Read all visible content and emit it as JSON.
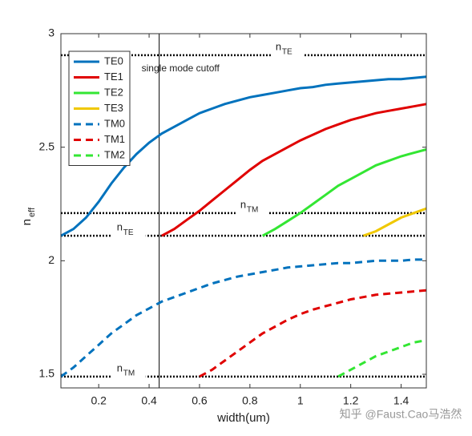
{
  "chart_data": {
    "type": "line",
    "xlabel": "width(um)",
    "ylabel": "n",
    "ylabel_sub": "eff",
    "xlim": [
      0.05,
      1.5
    ],
    "xticks": [
      0.2,
      0.4,
      0.6,
      0.8,
      1,
      1.2,
      1.4
    ],
    "ylim": [
      1.44,
      3
    ],
    "yticks": [
      1.5,
      2,
      2.5,
      3
    ],
    "grid": false,
    "legend": "upper left",
    "x": [
      0.05,
      0.1,
      0.15,
      0.2,
      0.25,
      0.3,
      0.35,
      0.4,
      0.45,
      0.5,
      0.55,
      0.6,
      0.65,
      0.7,
      0.75,
      0.8,
      0.85,
      0.9,
      0.95,
      1.0,
      1.05,
      1.1,
      1.15,
      1.2,
      1.25,
      1.3,
      1.35,
      1.4,
      1.45,
      1.5
    ],
    "series": [
      {
        "name": "TE0",
        "color": "#0072bd",
        "dashed": false,
        "values": [
          2.11,
          2.14,
          2.19,
          2.26,
          2.34,
          2.41,
          2.47,
          2.52,
          2.56,
          2.59,
          2.62,
          2.65,
          2.67,
          2.69,
          2.705,
          2.72,
          2.73,
          2.74,
          2.75,
          2.76,
          2.765,
          2.775,
          2.78,
          2.785,
          2.79,
          2.795,
          2.8,
          2.8,
          2.805,
          2.81
        ]
      },
      {
        "name": "TE1",
        "color": "#e00000",
        "dashed": false,
        "values": [
          null,
          null,
          null,
          null,
          null,
          null,
          null,
          null,
          2.11,
          2.14,
          2.18,
          2.22,
          2.265,
          2.31,
          2.355,
          2.4,
          2.44,
          2.47,
          2.5,
          2.53,
          2.555,
          2.58,
          2.6,
          2.62,
          2.635,
          2.65,
          2.66,
          2.67,
          2.68,
          2.69
        ]
      },
      {
        "name": "TE2",
        "color": "#33e633",
        "dashed": false,
        "values": [
          null,
          null,
          null,
          null,
          null,
          null,
          null,
          null,
          null,
          null,
          null,
          null,
          null,
          null,
          null,
          null,
          2.11,
          2.14,
          2.175,
          2.21,
          2.25,
          2.29,
          2.33,
          2.36,
          2.39,
          2.42,
          2.44,
          2.46,
          2.475,
          2.49
        ]
      },
      {
        "name": "TE3",
        "color": "#f0c800",
        "dashed": false,
        "values": [
          null,
          null,
          null,
          null,
          null,
          null,
          null,
          null,
          null,
          null,
          null,
          null,
          null,
          null,
          null,
          null,
          null,
          null,
          null,
          null,
          null,
          null,
          null,
          null,
          2.11,
          2.13,
          2.16,
          2.19,
          2.21,
          2.23
        ]
      },
      {
        "name": "TM0",
        "color": "#0072bd",
        "dashed": true,
        "values": [
          1.49,
          1.53,
          1.58,
          1.63,
          1.68,
          1.72,
          1.76,
          1.79,
          1.82,
          1.84,
          1.86,
          1.88,
          1.9,
          1.915,
          1.93,
          1.94,
          1.95,
          1.96,
          1.97,
          1.975,
          1.98,
          1.985,
          1.99,
          1.99,
          1.995,
          2.0,
          2.0,
          2.0,
          2.005,
          2.005
        ]
      },
      {
        "name": "TM1",
        "color": "#e00000",
        "dashed": true,
        "values": [
          null,
          null,
          null,
          null,
          null,
          null,
          null,
          null,
          null,
          null,
          null,
          1.49,
          1.52,
          1.56,
          1.6,
          1.64,
          1.68,
          1.71,
          1.74,
          1.765,
          1.785,
          1.8,
          1.815,
          1.83,
          1.84,
          1.85,
          1.855,
          1.86,
          1.865,
          1.87
        ]
      },
      {
        "name": "TM2",
        "color": "#33e633",
        "dashed": true,
        "values": [
          null,
          null,
          null,
          null,
          null,
          null,
          null,
          null,
          null,
          null,
          null,
          null,
          null,
          null,
          null,
          null,
          null,
          null,
          null,
          null,
          null,
          null,
          1.49,
          1.52,
          1.55,
          1.58,
          1.6,
          1.62,
          1.64,
          1.65
        ]
      }
    ],
    "hlines": [
      {
        "y": 2.905,
        "label": "n",
        "sub": "TE",
        "label_x": 0.94
      },
      {
        "y": 2.21,
        "label": "n",
        "sub": "TM",
        "label_x": 0.8
      },
      {
        "y": 2.11,
        "label": "n",
        "sub": "TE",
        "label_x": 0.31
      },
      {
        "y": 1.49,
        "label": "n",
        "sub": "TM",
        "label_x": 0.31
      }
    ],
    "vline": {
      "x": 0.44,
      "label": "single mode cutoff"
    }
  },
  "watermark": "知乎 @Faust.Cao马浩然"
}
